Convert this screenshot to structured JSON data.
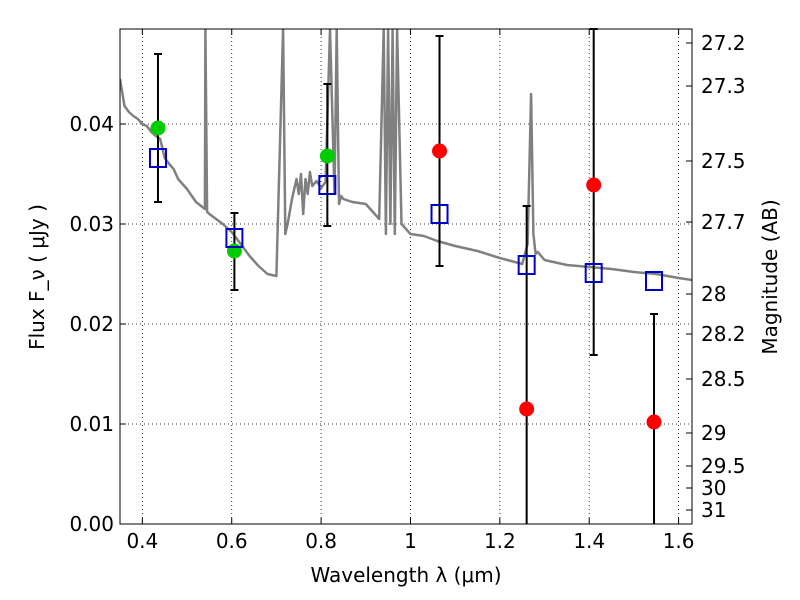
{
  "chart_data": {
    "type": "scatter",
    "xlabel": "Wavelength  λ (μm)",
    "ylabel": "Flux  F_ν  ( μJy )",
    "ylabel_right": "Magnitude (AB)",
    "xlim": [
      0.35,
      1.63
    ],
    "ylim": [
      0.0,
      0.0495
    ],
    "grid": true,
    "x_ticks": [
      0.4,
      0.6,
      0.8,
      1.0,
      1.2,
      1.4,
      1.6
    ],
    "x_tick_labels": [
      "0.4",
      "0.6",
      "0.8",
      "1",
      "1.2",
      "1.4",
      "1.6"
    ],
    "y_ticks": [
      0.0,
      0.01,
      0.02,
      0.03,
      0.04
    ],
    "y_tick_labels": [
      "0.00",
      "0.01",
      "0.02",
      "0.03",
      "0.04"
    ],
    "right_ticks": [
      {
        "flux": 0.0481,
        "label": "27.2"
      },
      {
        "flux": 0.0438,
        "label": "27.3"
      },
      {
        "flux": 0.0363,
        "label": "27.5"
      },
      {
        "flux": 0.0302,
        "label": "27.7"
      },
      {
        "flux": 0.023,
        "label": "28"
      },
      {
        "flux": 0.019,
        "label": "28.2"
      },
      {
        "flux": 0.0145,
        "label": "28.5"
      },
      {
        "flux": 0.0091,
        "label": "29"
      },
      {
        "flux": 0.0058,
        "label": "29.5"
      },
      {
        "flux": 0.0036,
        "label": "30"
      },
      {
        "flux": 0.0014,
        "label": "31"
      }
    ],
    "series": [
      {
        "kind": "observed-detection",
        "color": "#00cc00",
        "points": [
          {
            "x": 0.435,
            "y": 0.0396,
            "err_low": 0.0322,
            "err_high": 0.047
          },
          {
            "x": 0.606,
            "y": 0.0273,
            "err_low": 0.0234,
            "err_high": 0.0311
          },
          {
            "x": 0.814,
            "y": 0.0368,
            "err_low": 0.0298,
            "err_high": 0.044
          }
        ]
      },
      {
        "kind": "observed-low-significance",
        "color": "#ff0000",
        "points": [
          {
            "x": 1.065,
            "y": 0.0373,
            "err_low": 0.0258,
            "err_high": 0.0488
          },
          {
            "x": 1.26,
            "y": 0.0115,
            "err_low": 0.0,
            "err_high": 0.0318
          },
          {
            "x": 1.41,
            "y": 0.0339,
            "err_low": 0.0169,
            "err_high": 0.0495
          },
          {
            "x": 1.545,
            "y": 0.0102,
            "err_low": 0.0,
            "err_high": 0.021
          }
        ]
      },
      {
        "kind": "model-band-flux",
        "color": "#0000cc",
        "marker": "open-square",
        "points": [
          {
            "x": 0.435,
            "y": 0.0366
          },
          {
            "x": 0.606,
            "y": 0.0286
          },
          {
            "x": 0.814,
            "y": 0.0339
          },
          {
            "x": 1.065,
            "y": 0.031
          },
          {
            "x": 1.26,
            "y": 0.0259
          },
          {
            "x": 1.41,
            "y": 0.0251
          },
          {
            "x": 1.545,
            "y": 0.0243
          }
        ]
      }
    ],
    "model_spectrum": {
      "color": "#808080",
      "x": [
        0.35,
        0.36,
        0.37,
        0.38,
        0.39,
        0.4,
        0.41,
        0.42,
        0.43,
        0.44,
        0.45,
        0.46,
        0.47,
        0.48,
        0.5,
        0.52,
        0.54,
        0.541,
        0.545,
        0.55,
        0.58,
        0.6,
        0.62,
        0.64,
        0.66,
        0.68,
        0.7,
        0.715,
        0.72,
        0.725,
        0.735,
        0.745,
        0.75,
        0.755,
        0.76,
        0.765,
        0.77,
        0.775,
        0.78,
        0.79,
        0.8,
        0.81,
        0.82,
        0.83,
        0.835,
        0.84,
        0.845,
        0.85,
        0.87,
        0.9,
        0.93,
        0.94,
        0.945,
        0.95,
        0.955,
        0.96,
        0.965,
        0.97,
        0.98,
        1.0,
        1.03,
        1.06,
        1.1,
        1.15,
        1.2,
        1.25,
        1.262,
        1.27,
        1.275,
        1.28,
        1.285,
        1.3,
        1.35,
        1.4,
        1.45,
        1.5,
        1.55,
        1.6,
        1.63
      ],
      "y": [
        0.0445,
        0.0418,
        0.0412,
        0.0408,
        0.0405,
        0.04,
        0.0398,
        0.0392,
        0.0388,
        0.0385,
        0.0366,
        0.036,
        0.0355,
        0.0345,
        0.0335,
        0.0322,
        0.0315,
        0.0495,
        0.0312,
        0.031,
        0.03,
        0.0292,
        0.028,
        0.0268,
        0.0258,
        0.025,
        0.0248,
        0.0495,
        0.029,
        0.03,
        0.0325,
        0.0345,
        0.033,
        0.035,
        0.031,
        0.0345,
        0.033,
        0.0352,
        0.0338,
        0.0343,
        0.0336,
        0.0342,
        0.0495,
        0.033,
        0.0495,
        0.032,
        0.0328,
        0.0325,
        0.0322,
        0.032,
        0.0305,
        0.0495,
        0.029,
        0.0495,
        0.03,
        0.0495,
        0.029,
        0.0495,
        0.03,
        0.029,
        0.0288,
        0.0283,
        0.0278,
        0.0273,
        0.0266,
        0.026,
        0.028,
        0.043,
        0.029,
        0.027,
        0.0272,
        0.0264,
        0.0259,
        0.0257,
        0.0255,
        0.0252,
        0.025,
        0.0246,
        0.0244
      ]
    }
  }
}
